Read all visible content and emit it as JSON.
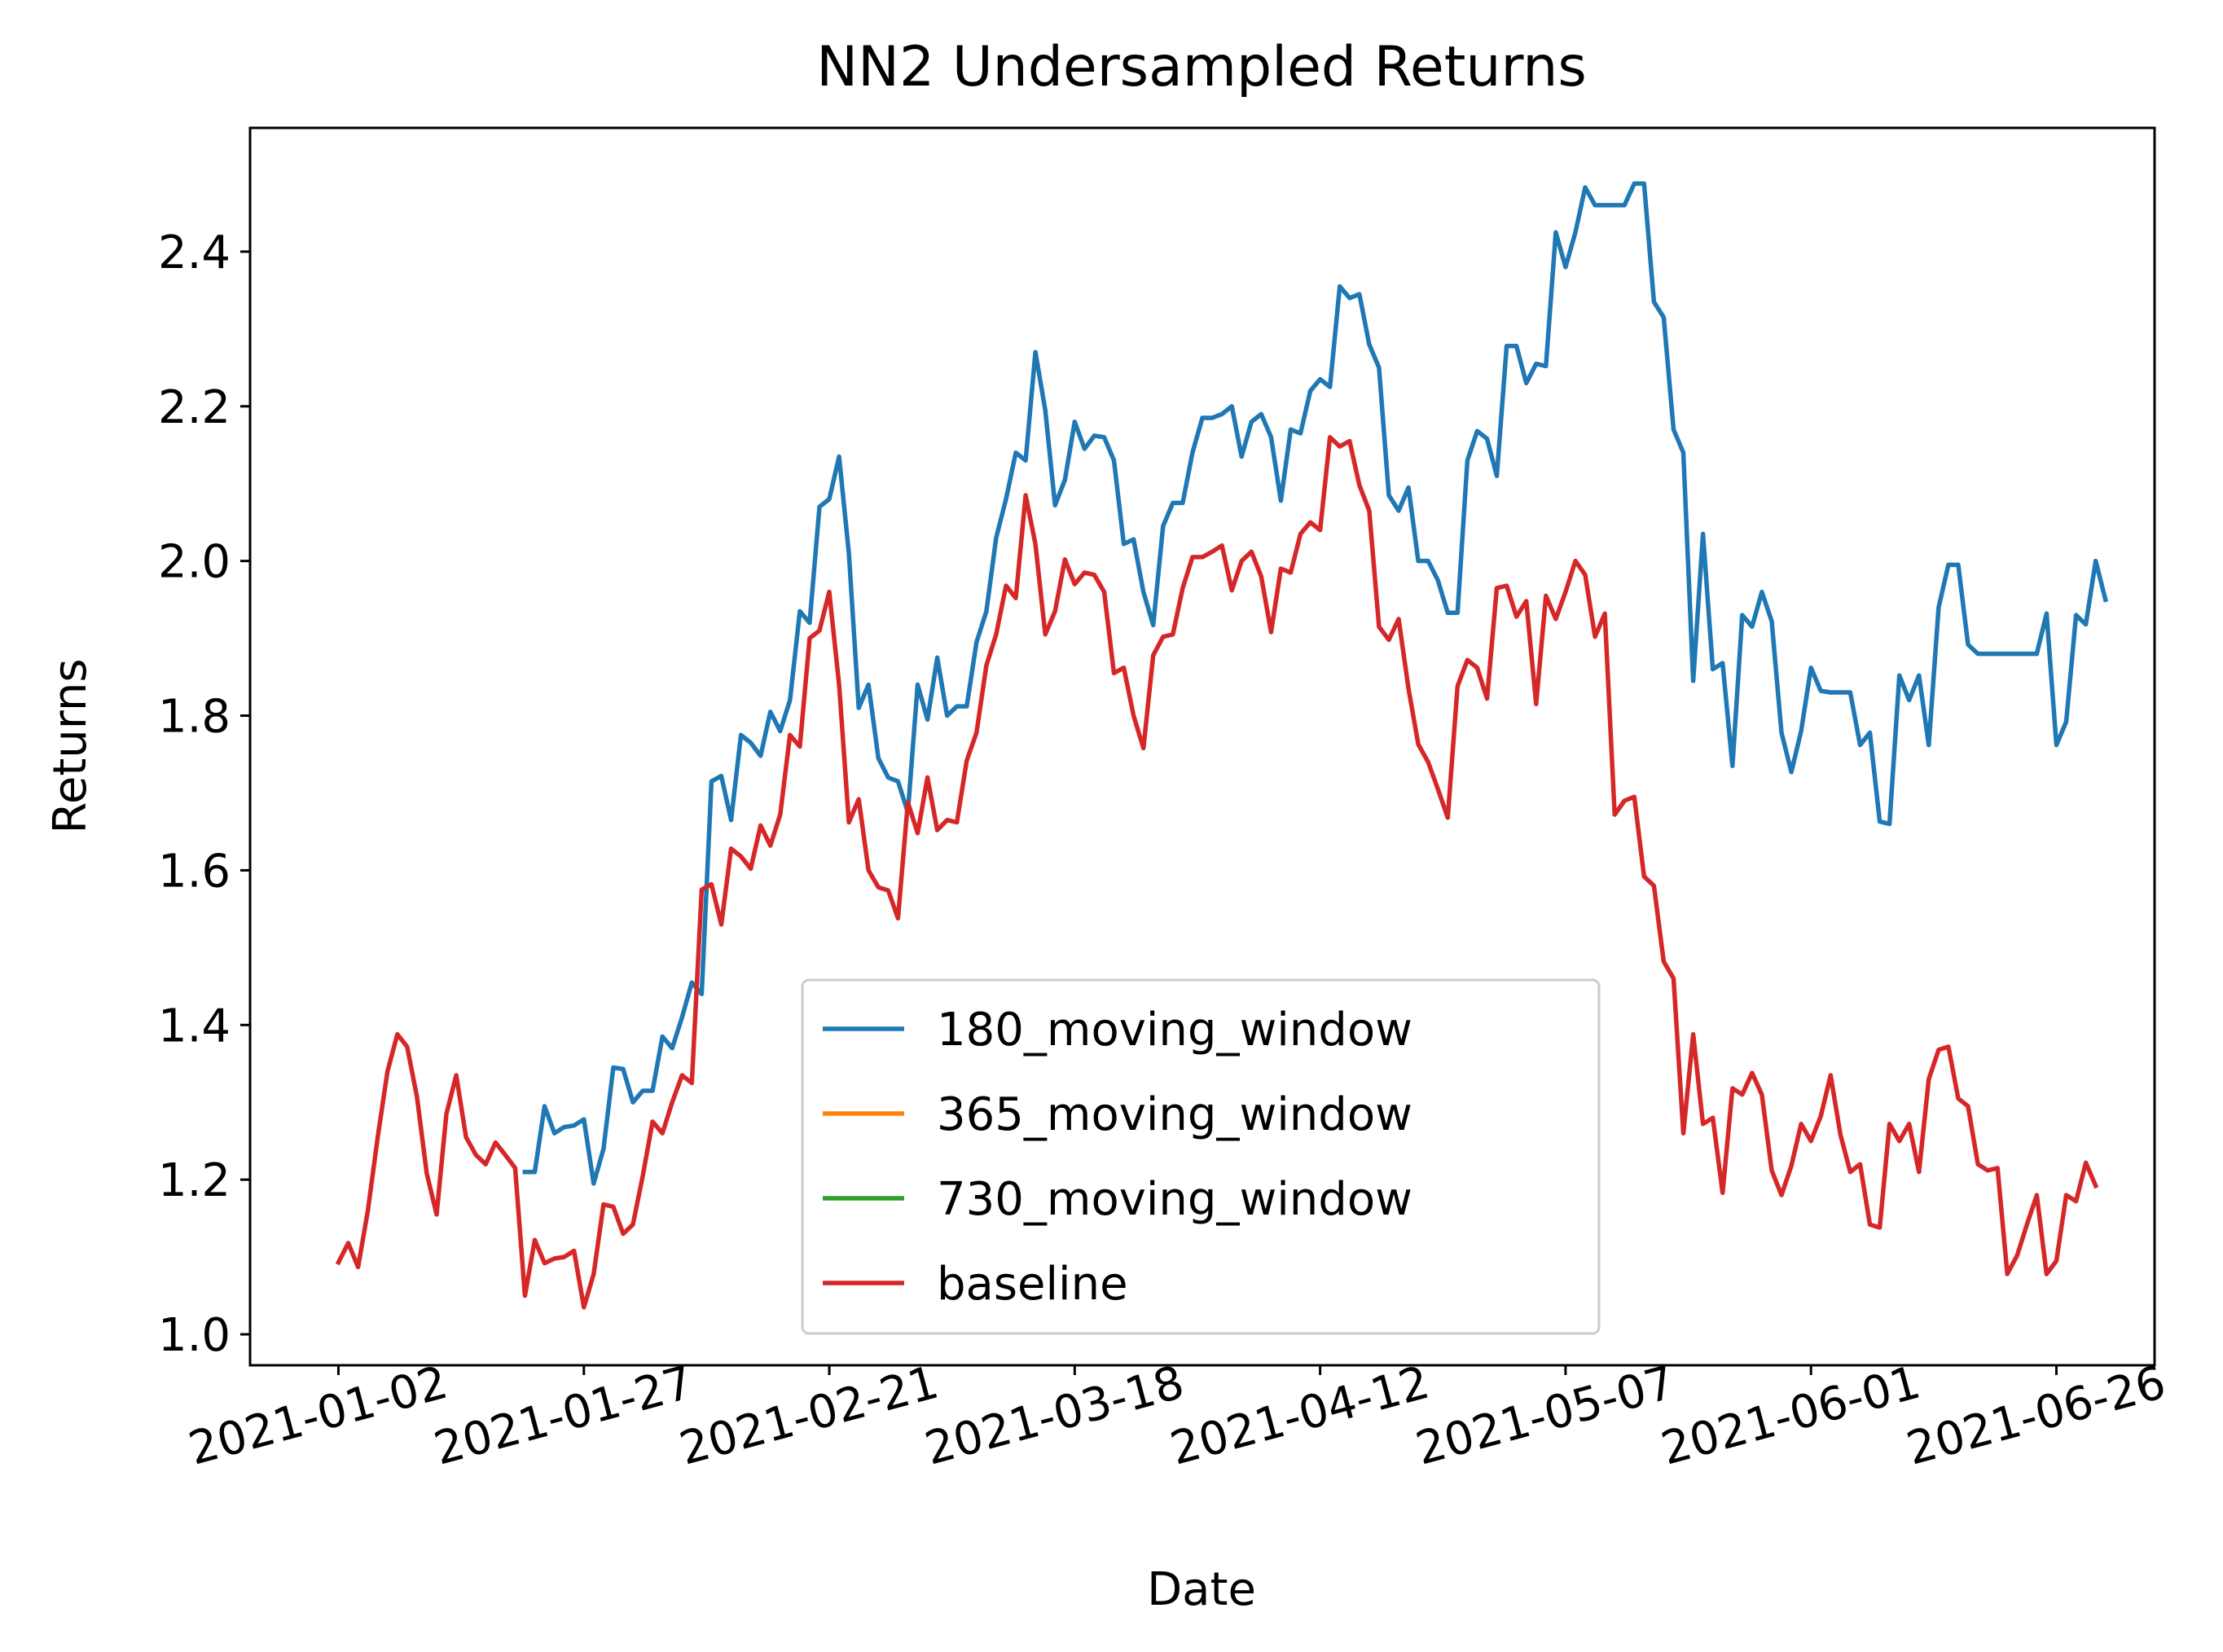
{
  "chart_data": {
    "type": "line",
    "title": "NN2 Undersampled Returns",
    "xlabel": "Date",
    "ylabel": "Returns",
    "x_start": "2021-01-02",
    "x_end": "2021-06-29",
    "xlim": [
      "2020-12-24",
      "2021-07-06"
    ],
    "ylim": [
      0.96,
      2.56
    ],
    "xticks": [
      "2021-01-02",
      "2021-01-27",
      "2021-02-21",
      "2021-03-18",
      "2021-04-12",
      "2021-05-07",
      "2021-06-01",
      "2021-06-26"
    ],
    "yticks": [
      "1.0",
      "1.2",
      "1.4",
      "1.6",
      "1.8",
      "2.0",
      "2.2",
      "2.4"
    ],
    "legend_position": "lower center",
    "grid": false,
    "series": [
      {
        "name": "180_moving_window",
        "color": "#1f77b4",
        "start": "2021-01-21",
        "values": [
          1.21,
          1.21,
          1.295,
          1.26,
          1.268,
          1.27,
          1.278,
          1.195,
          1.24,
          1.345,
          1.343,
          1.3,
          1.315,
          1.315,
          1.385,
          1.37,
          1.41,
          1.455,
          1.44,
          1.715,
          1.722,
          1.665,
          1.775,
          1.765,
          1.748,
          1.805,
          1.78,
          1.82,
          1.935,
          1.92,
          2.07,
          2.08,
          2.135,
          2.01,
          1.81,
          1.84,
          1.745,
          1.72,
          1.715,
          1.675,
          1.84,
          1.795,
          1.875,
          1.8,
          1.812,
          1.812,
          1.895,
          1.935,
          2.03,
          2.08,
          2.14,
          2.13,
          2.27,
          2.195,
          2.072,
          2.105,
          2.18,
          2.145,
          2.162,
          2.16,
          2.13,
          2.022,
          2.028,
          1.96,
          1.917,
          2.045,
          2.075,
          2.075,
          2.14,
          2.185,
          2.185,
          2.19,
          2.2,
          2.135,
          2.18,
          2.19,
          2.16,
          2.078,
          2.17,
          2.165,
          2.22,
          2.235,
          2.225,
          2.355,
          2.34,
          2.345,
          2.28,
          2.25,
          2.085,
          2.065,
          2.095,
          2.0,
          2.0,
          1.975,
          1.933,
          1.933,
          2.13,
          2.168,
          2.158,
          2.11,
          2.278,
          2.278,
          2.23,
          2.255,
          2.252,
          2.425,
          2.38,
          2.425,
          2.483,
          2.46,
          2.46,
          2.46,
          2.46,
          2.488,
          2.488,
          2.335,
          2.315,
          2.17,
          2.14,
          1.845,
          2.035,
          1.86,
          1.868,
          1.735,
          1.93,
          1.915,
          1.96,
          1.922,
          1.778,
          1.727,
          1.78,
          1.862,
          1.832,
          1.83,
          1.83,
          1.83,
          1.762,
          1.778,
          1.663,
          1.66,
          1.852,
          1.82,
          1.852,
          1.762,
          1.94,
          1.995,
          1.995,
          1.892,
          1.88,
          1.88,
          1.88,
          1.88,
          1.88,
          1.88,
          1.88,
          1.932,
          1.762,
          1.792,
          1.93,
          1.918,
          2.0,
          1.95
        ]
      },
      {
        "name": "365_moving_window",
        "color": "#ff7f0e",
        "start": null,
        "values": []
      },
      {
        "name": "730_moving_window",
        "color": "#2ca02c",
        "start": null,
        "values": []
      },
      {
        "name": "baseline",
        "color": "#d62728",
        "start": "2021-01-02",
        "values": [
          1.093,
          1.118,
          1.087,
          1.16,
          1.255,
          1.34,
          1.388,
          1.372,
          1.307,
          1.208,
          1.155,
          1.285,
          1.335,
          1.255,
          1.232,
          1.22,
          1.248,
          1.232,
          1.215,
          1.05,
          1.122,
          1.092,
          1.098,
          1.1,
          1.108,
          1.035,
          1.078,
          1.168,
          1.165,
          1.13,
          1.142,
          1.205,
          1.275,
          1.26,
          1.3,
          1.335,
          1.325,
          1.575,
          1.582,
          1.53,
          1.628,
          1.618,
          1.602,
          1.658,
          1.632,
          1.672,
          1.775,
          1.76,
          1.9,
          1.91,
          1.96,
          1.84,
          1.662,
          1.692,
          1.6,
          1.578,
          1.574,
          1.538,
          1.688,
          1.648,
          1.72,
          1.652,
          1.665,
          1.662,
          1.742,
          1.778,
          1.865,
          1.905,
          1.968,
          1.952,
          2.085,
          2.022,
          1.905,
          1.935,
          2.002,
          1.97,
          1.985,
          1.982,
          1.96,
          1.855,
          1.862,
          1.8,
          1.758,
          1.878,
          1.902,
          1.905,
          1.965,
          2.005,
          2.005,
          2.012,
          2.02,
          1.962,
          2.0,
          2.012,
          1.98,
          1.908,
          1.99,
          1.985,
          2.035,
          2.05,
          2.04,
          2.16,
          2.148,
          2.155,
          2.098,
          2.065,
          1.915,
          1.898,
          1.925,
          1.835,
          1.763,
          1.74,
          1.705,
          1.668,
          1.838,
          1.872,
          1.862,
          1.822,
          1.965,
          1.968,
          1.928,
          1.948,
          1.815,
          1.955,
          1.925,
          1.96,
          2.0,
          1.982,
          1.902,
          1.932,
          1.672,
          1.69,
          1.695,
          1.592,
          1.58,
          1.482,
          1.46,
          1.26,
          1.388,
          1.272,
          1.28,
          1.183,
          1.318,
          1.31,
          1.338,
          1.31,
          1.212,
          1.18,
          1.218,
          1.272,
          1.25,
          1.282,
          1.335,
          1.258,
          1.21,
          1.22,
          1.142,
          1.138,
          1.272,
          1.25,
          1.272,
          1.21,
          1.33,
          1.368,
          1.372,
          1.305,
          1.295,
          1.22,
          1.212,
          1.215,
          1.078,
          1.102,
          1.142,
          1.18,
          1.078,
          1.095,
          1.18,
          1.172,
          1.222,
          1.192
        ]
      }
    ]
  }
}
